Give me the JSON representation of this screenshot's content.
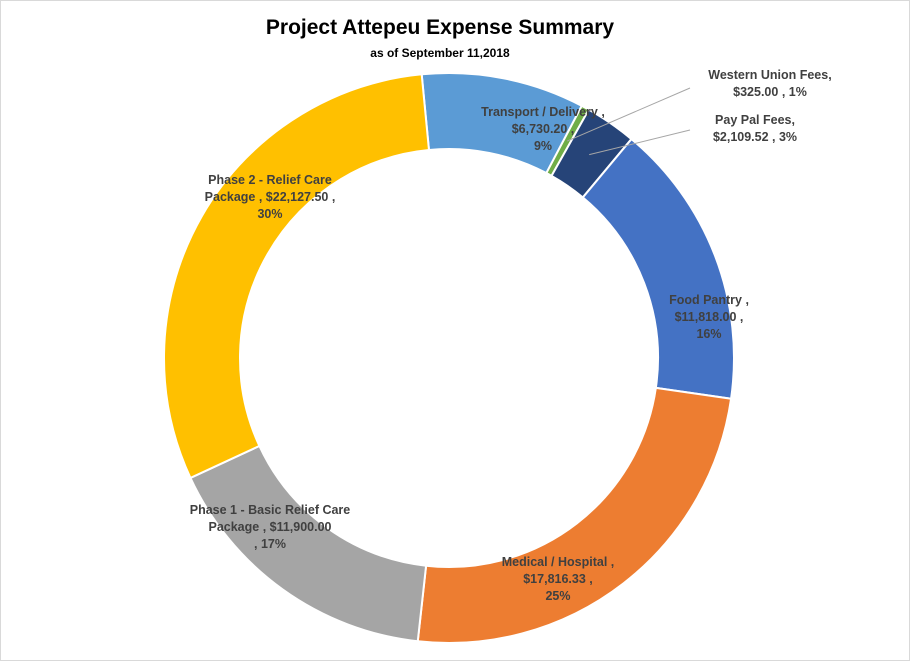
{
  "chart_data": {
    "type": "pie",
    "variant": "doughnut",
    "title": "Project Attepeu Expense Summary",
    "subtitle": "as of September 11,2018",
    "slices": [
      {
        "name": "Transport / Delivery",
        "value": 6730.2,
        "value_label": "$6,730.20",
        "percent_label": "9%",
        "color": "#5B9BD5"
      },
      {
        "name": "Western Union Fees",
        "value": 325.0,
        "value_label": "$325.00",
        "percent_label": "1%",
        "color": "#70AD47"
      },
      {
        "name": "Pay Pal Fees",
        "value": 2109.52,
        "value_label": "$2,109.52",
        "percent_label": "3%",
        "color": "#264478"
      },
      {
        "name": "Food Pantry",
        "value": 11818.0,
        "value_label": "$11,818.00",
        "percent_label": "16%",
        "color": "#4472C4"
      },
      {
        "name": "Medical / Hospital",
        "value": 17816.33,
        "value_label": "$17,816.33",
        "percent_label": "25%",
        "color": "#ED7D31"
      },
      {
        "name": "Phase 1 - Basic Relief Care Package",
        "value": 11900.0,
        "value_label": "$11,900.00",
        "percent_label": "17%",
        "color": "#A5A5A5"
      },
      {
        "name": "Phase 2 - Relief Care Package",
        "value": 22127.5,
        "value_label": "$22,127.50",
        "percent_label": "30%",
        "color": "#FFC000"
      }
    ],
    "labels": {
      "transport": {
        "l1": "Transport / Delivery ,",
        "l2": "$6,730.20 ,",
        "l3": "9%"
      },
      "western": {
        "l1": "Western Union Fees,",
        "l2": "$325.00 , 1%"
      },
      "paypal": {
        "l1": "Pay Pal Fees,",
        "l2": "$2,109.52 , 3%"
      },
      "food": {
        "l1": "Food Pantry ,",
        "l2": "$11,818.00 ,",
        "l3": "16%"
      },
      "medical": {
        "l1": "Medical / Hospital ,",
        "l2": "$17,816.33 ,",
        "l3": "25%"
      },
      "phase1": {
        "l1": "Phase 1 - Basic Relief Care",
        "l2": "Package , $11,900.00",
        "l3": ", 17%"
      },
      "phase2": {
        "l1": "Phase 2 - Relief Care",
        "l2": "Package , $22,127.50 ,",
        "l3": "30%"
      }
    },
    "legend": "none"
  }
}
